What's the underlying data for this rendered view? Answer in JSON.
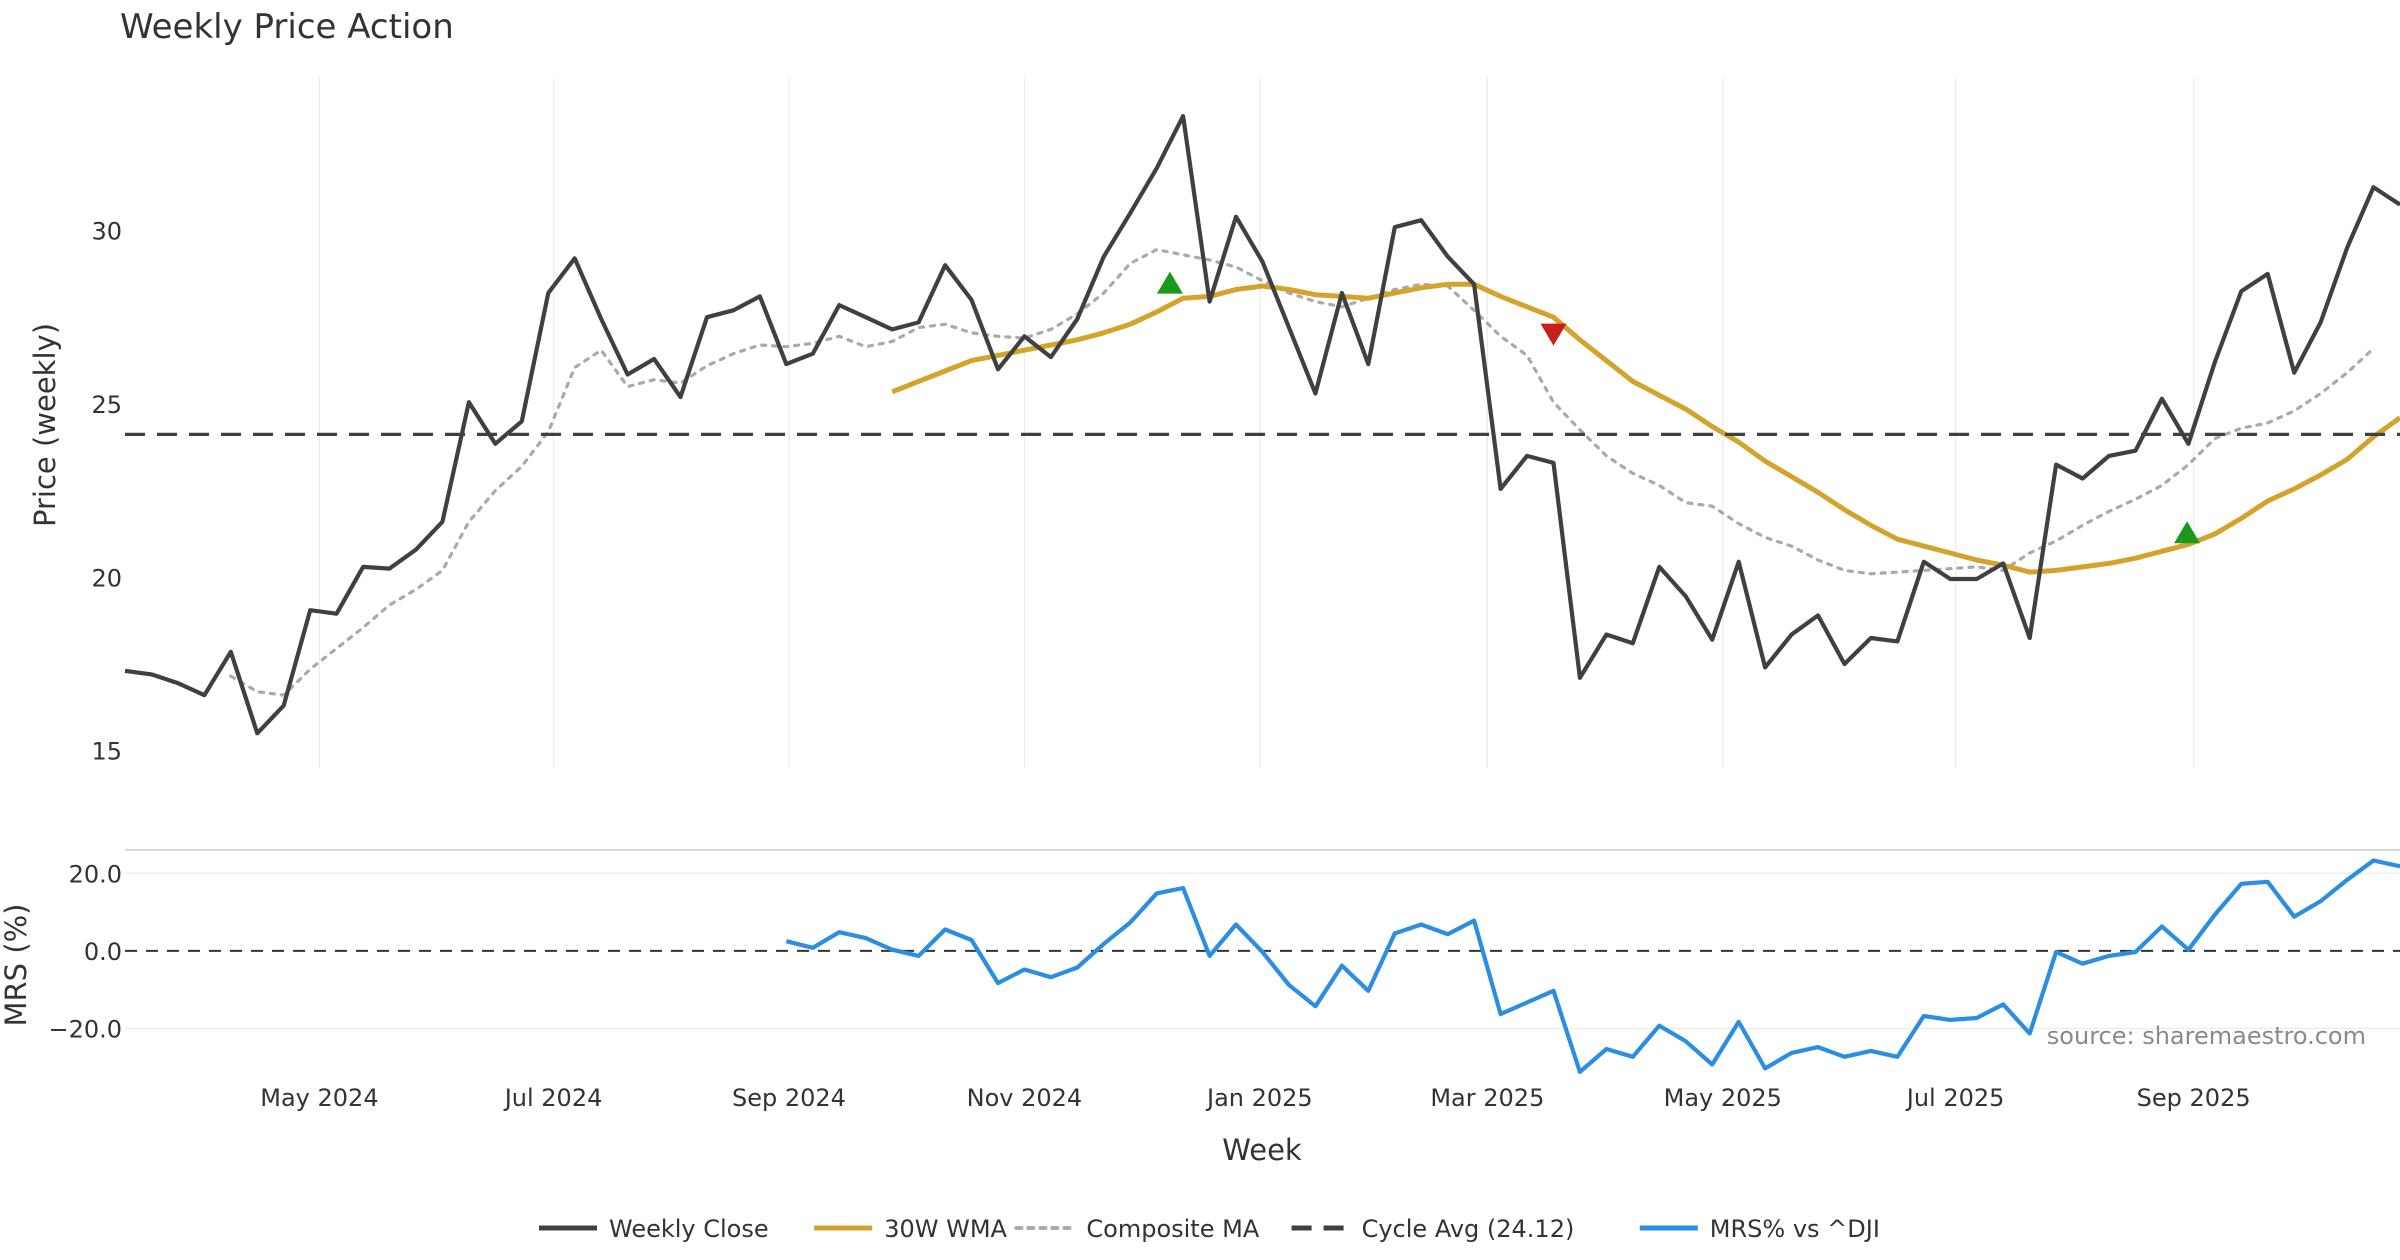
{
  "chart_data": {
    "type": "line",
    "title": "Weekly Price Action",
    "xlabel": "Week",
    "x_tick_labels": [
      "May 2024",
      "Jul 2024",
      "Sep 2024",
      "Nov 2024",
      "Jan 2025",
      "Mar 2025",
      "May 2025",
      "Jul 2025",
      "Sep 2025"
    ],
    "x_tick_weeks": [
      7.35,
      16.2,
      25.1,
      34.0,
      42.9,
      51.5,
      60.4,
      69.2,
      78.2
    ],
    "price_panel": {
      "ylabel": "Price (weekly)",
      "ylim": [
        14.5,
        34.4
      ],
      "yticks": [
        15,
        20,
        25,
        30
      ],
      "grid_x": true,
      "series": [
        {
          "name": "Weekly Close",
          "color": "#404040",
          "style": "solid",
          "start_week": 0,
          "values": [
            17.3,
            17.2,
            16.95,
            16.6,
            17.85,
            15.5,
            16.3,
            19.05,
            18.95,
            20.3,
            20.25,
            20.8,
            21.6,
            25.05,
            23.85,
            24.5,
            28.2,
            29.2,
            27.45,
            25.85,
            26.3,
            25.2,
            27.5,
            27.7,
            28.1,
            26.15,
            26.45,
            27.85,
            27.5,
            27.15,
            27.35,
            29.0,
            28.0,
            26.0,
            26.95,
            26.35,
            27.45,
            29.25,
            30.5,
            31.8,
            33.3,
            27.95,
            30.4,
            29.1,
            27.2,
            25.3,
            28.2,
            26.15,
            30.1,
            30.3,
            29.25,
            28.45,
            22.55,
            23.5,
            23.3,
            17.1,
            18.35,
            18.1,
            20.3,
            19.45,
            18.2,
            20.45,
            17.4,
            18.35,
            18.9,
            17.5,
            18.25,
            18.15,
            20.45,
            19.95,
            19.95,
            20.4,
            18.25,
            23.25,
            22.85,
            23.5,
            23.65,
            25.15,
            23.85,
            26.2,
            28.25,
            28.75,
            25.9,
            27.35,
            29.5,
            31.25,
            30.75
          ]
        },
        {
          "name": "30W WMA",
          "color": "#D4A32B",
          "style": "solid",
          "start_week": 29,
          "values": [
            25.35,
            25.65,
            25.95,
            26.25,
            26.4,
            26.55,
            26.7,
            26.85,
            27.05,
            27.3,
            27.65,
            28.05,
            28.1,
            28.3,
            28.4,
            28.3,
            28.15,
            28.1,
            28.05,
            28.2,
            28.35,
            28.45,
            28.45,
            28.1,
            27.8,
            27.5,
            26.85,
            26.25,
            25.65,
            25.25,
            24.85,
            24.35,
            23.9,
            23.35,
            22.9,
            22.45,
            21.95,
            21.5,
            21.1,
            20.9,
            20.7,
            20.5,
            20.35,
            20.15,
            20.2,
            20.3,
            20.4,
            20.55,
            20.75,
            20.95,
            21.25,
            21.7,
            22.2,
            22.55,
            22.95,
            23.4,
            24.05,
            24.6
          ]
        },
        {
          "name": "Composite MA",
          "color": "#AAAAAA",
          "style": "dotted",
          "start_week": 4,
          "values": [
            17.15,
            16.7,
            16.6,
            17.35,
            17.95,
            18.55,
            19.2,
            19.65,
            20.2,
            21.6,
            22.5,
            23.2,
            24.2,
            26.05,
            26.55,
            25.5,
            25.7,
            25.6,
            26.1,
            26.45,
            26.7,
            26.65,
            26.75,
            26.95,
            26.65,
            26.8,
            27.2,
            27.3,
            27.05,
            26.95,
            26.9,
            27.15,
            27.6,
            28.2,
            29.05,
            29.45,
            29.3,
            29.15,
            28.95,
            28.55,
            28.2,
            27.95,
            27.8,
            28.05,
            28.3,
            28.45,
            28.4,
            27.7,
            26.95,
            26.4,
            25.05,
            24.25,
            23.5,
            23.0,
            22.65,
            22.15,
            22.05,
            21.55,
            21.15,
            20.9,
            20.5,
            20.2,
            20.1,
            20.15,
            20.2,
            20.25,
            20.3,
            20.2,
            20.7,
            21.05,
            21.5,
            21.9,
            22.25,
            22.65,
            23.25,
            24.0,
            24.3,
            24.45,
            24.8,
            25.3,
            25.9,
            26.6
          ]
        },
        {
          "name": "Cycle Avg (24.12)",
          "color": "#404040",
          "style": "dashed",
          "constant": 24.12
        }
      ],
      "markers": [
        {
          "type": "buy",
          "color": "#1A9A1A",
          "week": 39.5,
          "value": 28.5
        },
        {
          "type": "sell",
          "color": "#C81E1E",
          "week": 54.0,
          "value": 27.0
        },
        {
          "type": "buy",
          "color": "#1A9A1A",
          "week": 77.95,
          "value": 21.3
        }
      ]
    },
    "mrs_panel": {
      "ylabel": "MRS (%)",
      "ylim": [
        -32,
        26
      ],
      "yticks": [
        20,
        0,
        -20
      ],
      "ytick_labels": [
        "20.0",
        "0.0",
        "−20.0"
      ],
      "zero_line": "dashed",
      "series": [
        {
          "name": "MRS% vs ^DJI",
          "color": "#2B8EE3",
          "style": "solid",
          "start_week": 25,
          "values": [
            2.5,
            0.8,
            4.8,
            3.3,
            0.3,
            -1.3,
            5.5,
            2.8,
            -8.3,
            -4.8,
            -6.8,
            -4.3,
            1.8,
            7.3,
            14.8,
            16.2,
            -1.3,
            6.8,
            -0.3,
            -8.8,
            -14.3,
            -3.8,
            -10.3,
            4.5,
            6.8,
            4.3,
            7.8,
            -16.3,
            -13.3,
            -10.3,
            -31.2,
            -25.3,
            -27.3,
            -19.3,
            -23.3,
            -29.3,
            -18.3,
            -30.3,
            -26.3,
            -24.8,
            -27.3,
            -25.8,
            -27.3,
            -16.8,
            -17.8,
            -17.3,
            -13.8,
            -21.3,
            -0.3,
            -3.3,
            -1.3,
            -0.3,
            6.3,
            0.3,
            9.3,
            17.3,
            17.8,
            8.8,
            12.8,
            18.3,
            23.3,
            21.8
          ]
        }
      ]
    },
    "legend": {
      "position": "bottom",
      "entries": [
        {
          "label": "Weekly Close",
          "color": "#404040",
          "style": "solid"
        },
        {
          "label": "30W WMA",
          "color": "#D4A32B",
          "style": "solid"
        },
        {
          "label": "Composite MA",
          "color": "#AAAAAA",
          "style": "dotted"
        },
        {
          "label": "Cycle Avg (24.12)",
          "color": "#404040",
          "style": "dashed"
        },
        {
          "label": "MRS% vs ^DJI",
          "color": "#2B8EE3",
          "style": "solid"
        }
      ]
    },
    "annotation": "source: sharemaestro.com"
  }
}
